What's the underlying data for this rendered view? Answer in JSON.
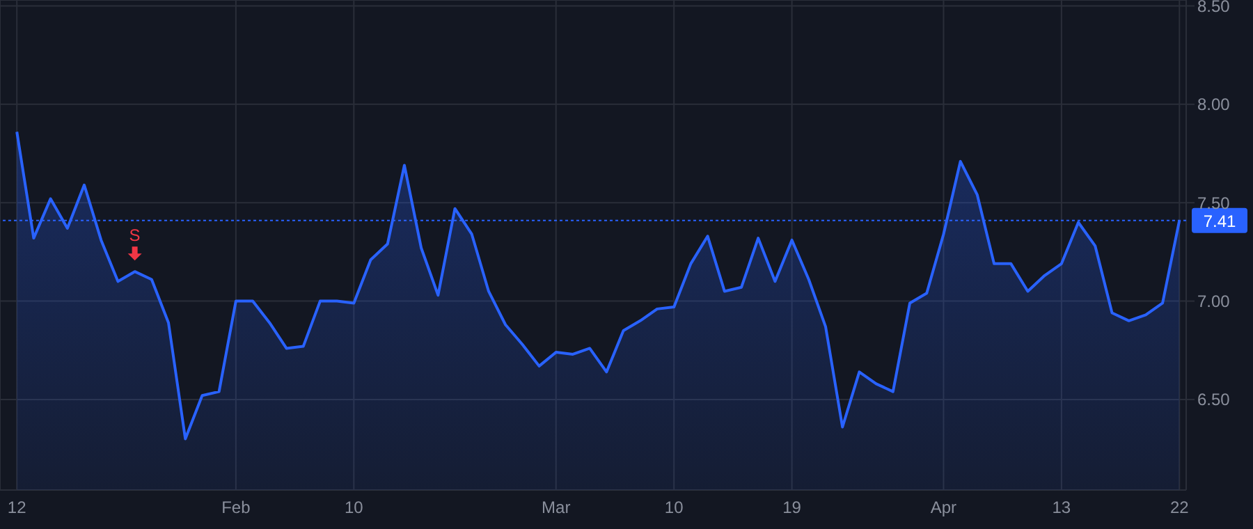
{
  "chart_data": {
    "type": "area",
    "categories": [
      "12",
      null,
      null,
      null,
      null,
      null,
      null,
      null,
      null,
      null,
      null,
      null,
      null,
      "Feb",
      null,
      null,
      null,
      null,
      null,
      null,
      "10",
      null,
      null,
      null,
      null,
      null,
      null,
      null,
      null,
      null,
      null,
      null,
      "Mar",
      null,
      null,
      null,
      null,
      null,
      null,
      "10",
      null,
      null,
      null,
      null,
      null,
      null,
      "19",
      null,
      null,
      null,
      null,
      null,
      null,
      null,
      null,
      "Apr",
      null,
      null,
      null,
      null,
      null,
      null,
      "13",
      null,
      null,
      null,
      null,
      null,
      null,
      "22"
    ],
    "series": [
      {
        "color": "#2962ff",
        "values": [
          7.86,
          7.32,
          7.52,
          7.37,
          7.59,
          7.31,
          7.1,
          7.15,
          7.11,
          6.89,
          6.3,
          6.52,
          6.54,
          7.0,
          7.0,
          6.89,
          6.76,
          6.77,
          7.0,
          7.0,
          6.99,
          7.21,
          7.29,
          7.69,
          7.27,
          7.03,
          7.47,
          7.34,
          7.05,
          6.88,
          6.78,
          6.67,
          6.74,
          6.73,
          6.76,
          6.64,
          6.85,
          6.9,
          6.96,
          6.97,
          7.19,
          7.33,
          7.05,
          7.07,
          7.32,
          7.1,
          7.31,
          7.11,
          6.87,
          6.36,
          6.64,
          6.58,
          6.54,
          6.99,
          7.04,
          7.34,
          7.71,
          7.54,
          7.19,
          7.19,
          7.05,
          7.13,
          7.19,
          7.4,
          7.28,
          6.94,
          6.9,
          6.93,
          6.99,
          7.41
        ]
      }
    ],
    "ylim": [
      6.04,
      8.53
    ],
    "yticks": [
      {
        "value": 6.5,
        "label": "6.50"
      },
      {
        "value": 7,
        "label": "7.00"
      },
      {
        "value": 7.5,
        "label": "7.50"
      },
      {
        "value": 8,
        "label": "8.00"
      },
      {
        "value": 8.5,
        "label": "8.50"
      }
    ],
    "grid": true,
    "ref_lines": [
      {
        "axis": "y",
        "value": 7.41,
        "label": "7.41",
        "color": "#2962ff",
        "line_style": "dotted"
      }
    ],
    "annotations": [
      {
        "text": "S",
        "y": 7.15
      }
    ]
  }
}
